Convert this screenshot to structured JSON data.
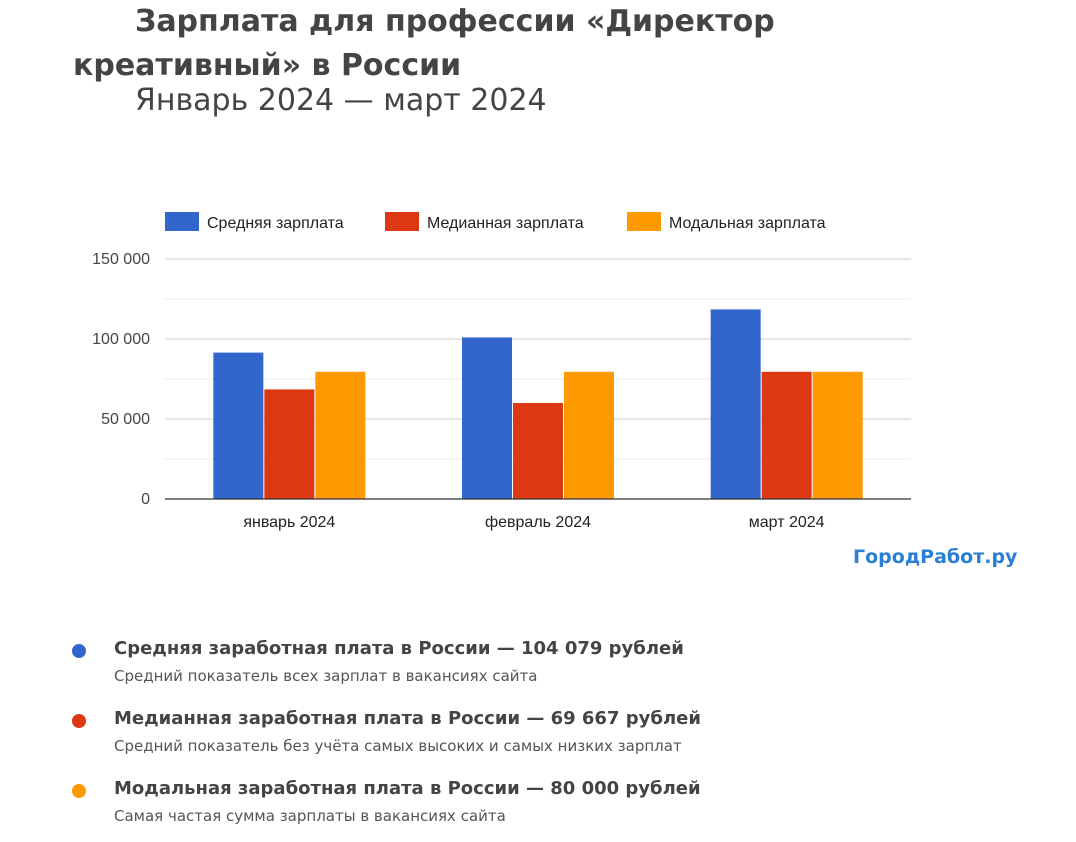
{
  "page": {
    "title": "Зарплата для профессии «Директор креативный» в России",
    "subtitle": "Январь 2024 — март 2024",
    "brand": "ГородРабот.ру"
  },
  "chart_data": {
    "type": "bar",
    "categories": [
      "январь 2024",
      "февраль 2024",
      "март 2024"
    ],
    "series": [
      {
        "name": "Средняя зарплата",
        "color": "#3366cc",
        "values": [
          91500,
          101000,
          118500
        ]
      },
      {
        "name": "Медианная зарплата",
        "color": "#dc3912",
        "values": [
          68500,
          60000,
          79500
        ]
      },
      {
        "name": "Модальная зарплата",
        "color": "#ff9900",
        "values": [
          79500,
          79500,
          79500
        ]
      }
    ],
    "ylim": [
      0,
      150000
    ],
    "yticks": [
      0,
      50000,
      100000,
      150000
    ],
    "ytick_labels": [
      "0",
      "50 000",
      "100 000",
      "150 000"
    ],
    "grid": true,
    "legend": "top"
  },
  "stats": [
    {
      "color": "#3366cc",
      "heading": "Средняя заработная плата в России — 104 079 рублей",
      "description": "Средний показатель всех зарплат в вакансиях сайта"
    },
    {
      "color": "#dc3912",
      "heading": "Медианная заработная плата в России — 69 667 рублей",
      "description": "Средний показатель без учёта самых высоких и самых низких зарплат"
    },
    {
      "color": "#ff9900",
      "heading": "Модальная заработная плата в России — 80 000 рублей",
      "description": "Самая частая сумма зарплаты в вакансиях сайта"
    }
  ]
}
